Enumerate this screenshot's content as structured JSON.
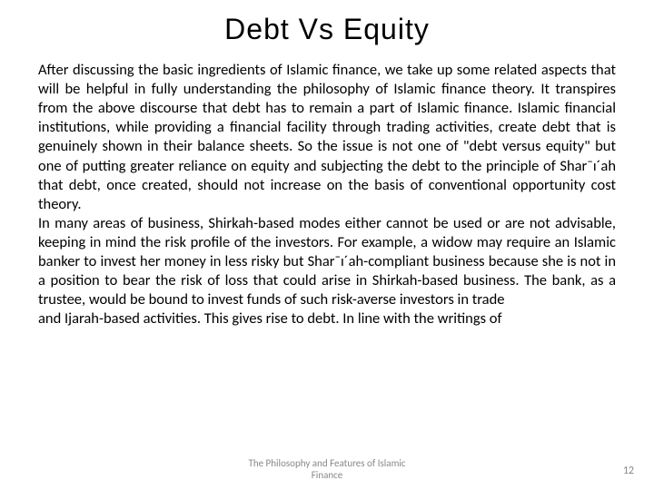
{
  "slide": {
    "title": "Debt Vs Equity",
    "paragraph1": "After discussing the basic ingredients of Islamic finance, we take up some related aspects that will be helpful in fully understanding the philosophy of Islamic finance theory. It transpires from the above discourse that debt has to remain a part of Islamic finance. Islamic financial institutions, while providing a financial facility through trading activities, create debt that is genuinely shown in their balance sheets. So the issue is not one of \"debt versus equity\" but one of putting greater reliance on equity and subjecting the debt to the principle of Shar¯ı´ah that debt, once created, should not increase on the basis of conventional opportunity cost theory.",
    "paragraph2": "In many areas of business, Shirkah-based modes either cannot be used or are not advisable, keeping in mind the risk profile of the investors. For example, a widow may require an Islamic banker to invest her money in less risky but Shar¯ı´ah-compliant business because she is not in a position to bear the risk of loss that could arise in Shirkah-based business. The bank, as a trustee, would be bound to invest funds of such risk-averse investors in trade",
    "paragraph3": "and Ijarah-based activities. This gives rise to debt. In line with the writings of",
    "footer_line1": "The Philosophy and Features of Islamic",
    "footer_line2": "Finance",
    "page_number": "12"
  },
  "colors": {
    "background": "#ffffff",
    "text": "#000000",
    "footer": "#888888"
  }
}
